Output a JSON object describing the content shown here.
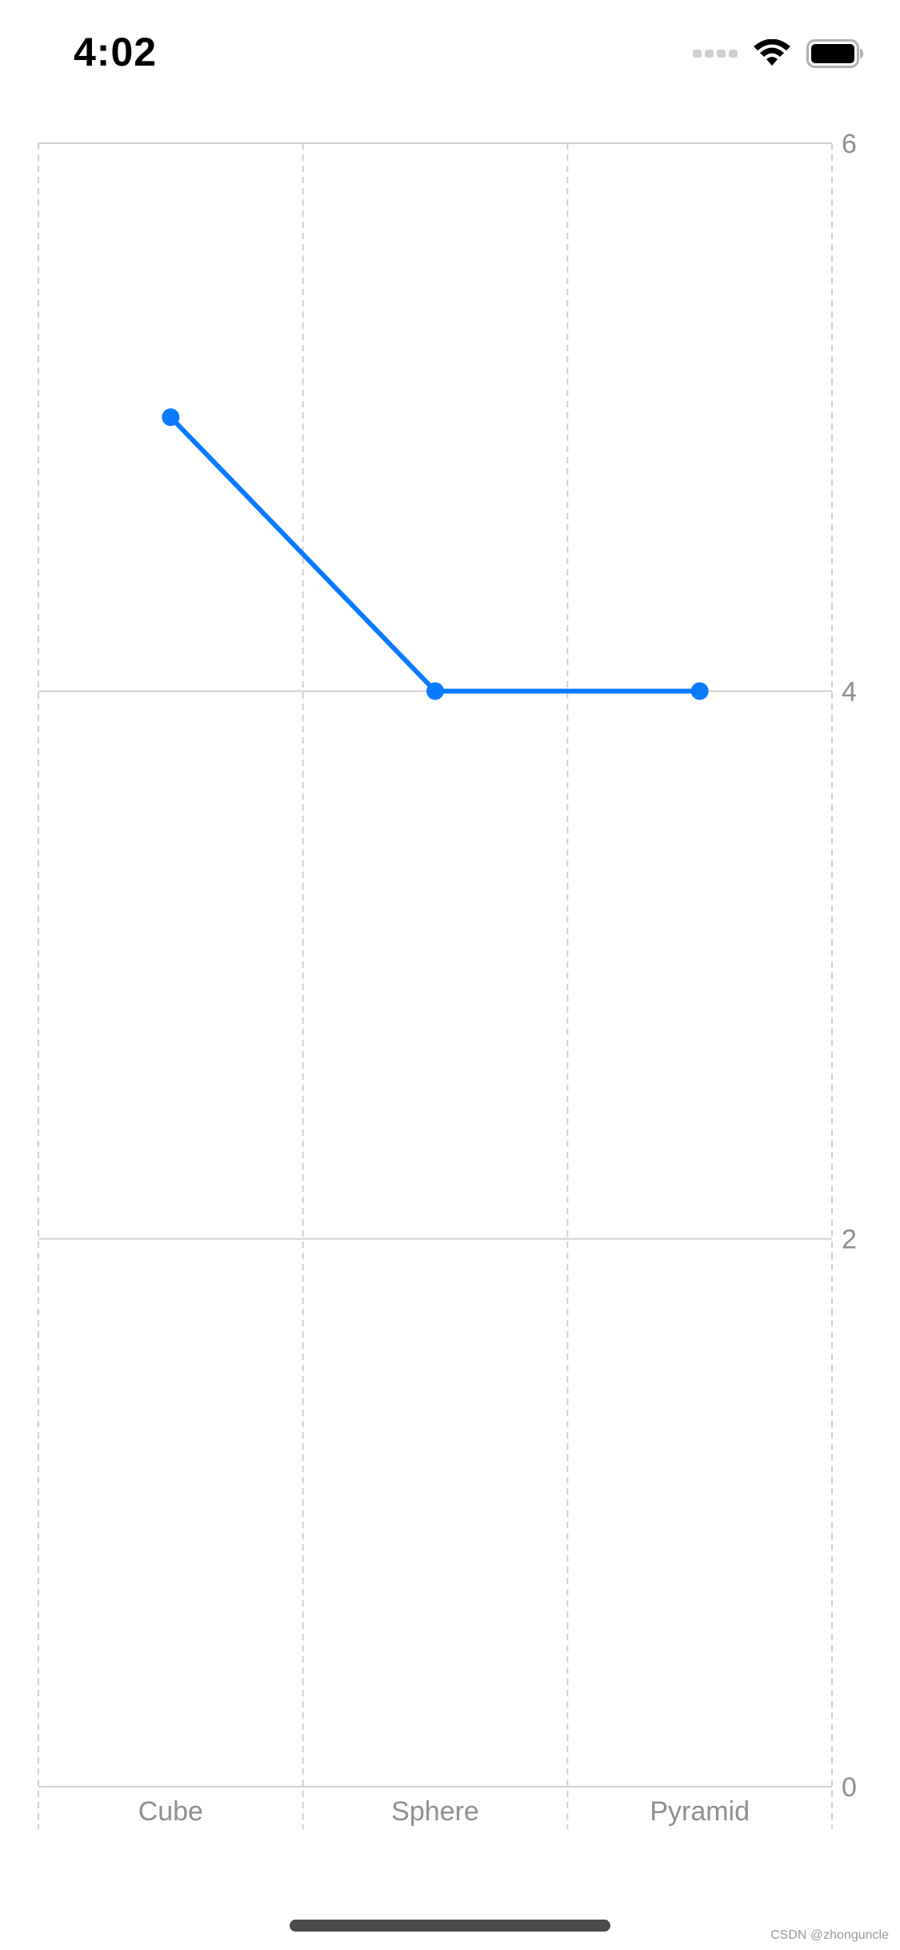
{
  "status_bar": {
    "time": "4:02",
    "icons": [
      "signal-dots-icon",
      "wifi-icon",
      "battery-icon"
    ]
  },
  "chart_data": {
    "type": "line",
    "categories": [
      "Cube",
      "Sphere",
      "Pyramid"
    ],
    "series": [
      {
        "values": [
          5,
          4,
          4
        ]
      }
    ],
    "y_ticks": [
      "0",
      "2",
      "4",
      "6"
    ],
    "ylim": [
      0,
      6
    ],
    "y_axis_position": "right",
    "grid": true,
    "vertical_grid": "dashed",
    "colors": {
      "line": "#0a7aff",
      "grid": "#cfcfd3",
      "tick_label": "#8e8e93"
    }
  },
  "watermark": "CSDN @zhonguncle"
}
